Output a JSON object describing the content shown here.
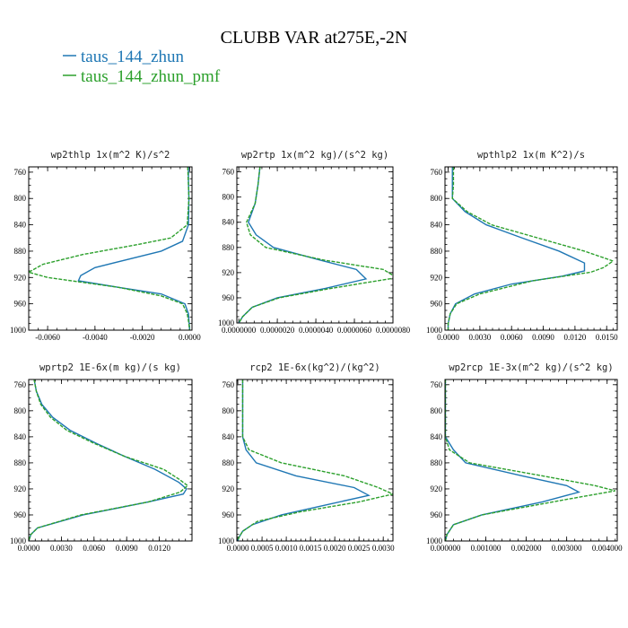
{
  "title": "CLUBB VAR at275E,-2N",
  "legend": [
    {
      "label": "taus_144_zhun",
      "color": "#1f77b4",
      "dash": "solid"
    },
    {
      "label": "taus_144_zhun_pmf",
      "color": "#2ca02c",
      "dash": "dashed"
    }
  ],
  "chart_data": [
    {
      "type": "line",
      "title": "wp2thlp   1x(m^2 K)/s^2",
      "y_ticks": [
        "760",
        "800",
        "840",
        "880",
        "920",
        "960",
        "1000"
      ],
      "ylim": [
        1000,
        752
      ],
      "xlim": [
        -0.0068,
        0.0001
      ],
      "x_ticks": [
        -0.006,
        -0.004,
        -0.002,
        0.0
      ],
      "x_tick_labels": [
        "-0.0060",
        "-0.0040",
        "-0.0020",
        "0.0000"
      ],
      "series": [
        {
          "y": [
            752,
            770,
            800,
            840,
            865,
            880,
            905,
            917,
            925,
            935,
            945,
            960,
            975,
            990,
            1000
          ],
          "x": [
            -5e-05,
            -5e-05,
            -3e-05,
            -5e-05,
            -0.0003,
            -0.0012,
            -0.004,
            -0.0046,
            -0.0047,
            -0.003,
            -0.0012,
            -0.0002,
            -5e-05,
            -2e-05,
            0.0
          ]
        },
        {
          "y": [
            752,
            770,
            800,
            840,
            860,
            870,
            885,
            900,
            912,
            920,
            925,
            935,
            948,
            960,
            975,
            990,
            1000
          ],
          "x": [
            -8e-05,
            -6e-05,
            -3e-05,
            -0.0001,
            -0.0008,
            -0.0022,
            -0.0045,
            -0.0062,
            -0.0068,
            -0.006,
            -0.005,
            -0.003,
            -0.0012,
            -0.0003,
            -0.0001,
            -3e-05,
            0.0
          ]
        }
      ]
    },
    {
      "type": "line",
      "title": "wp2rtp   1x(m^2 kg)/(s^2 kg)",
      "y_ticks": [
        "760",
        "800",
        "840",
        "880",
        "920",
        "960",
        "1000"
      ],
      "ylim": [
        1000,
        752
      ],
      "xlim": [
        -1e-07,
        8e-06
      ],
      "x_ticks": [
        0.0,
        2e-06,
        4e-06,
        6e-06,
        8e-06
      ],
      "x_tick_labels": [
        "0.0000000",
        "0.0000020",
        "0.0000040",
        "0.0000060",
        "0.0000080"
      ],
      "series": [
        {
          "y": [
            752,
            780,
            810,
            840,
            860,
            880,
            900,
            915,
            930,
            945,
            960,
            975,
            990,
            1000
          ],
          "x": [
            1.1e-06,
            1e-06,
            8.5e-07,
            5e-07,
            9e-07,
            1.8e-06,
            4.2e-06,
            6.1e-06,
            6.6e-06,
            4.5e-06,
            2e-06,
            7e-07,
            2e-07,
            0.0
          ],
          "style": "solid"
        },
        {
          "y": [
            752,
            780,
            810,
            840,
            860,
            880,
            900,
            915,
            928,
            945,
            960,
            975,
            990,
            1000
          ],
          "x": [
            1.1e-06,
            1e-06,
            8.5e-07,
            4e-07,
            6e-07,
            1.4e-06,
            4.4e-06,
            7.5e-06,
            8.2e-06,
            4.8e-06,
            2.1e-06,
            7e-07,
            2e-07,
            0.0
          ]
        }
      ]
    },
    {
      "type": "line",
      "title": "wpthlp2   1x(m K^2)/s",
      "y_ticks": [
        "760",
        "800",
        "840",
        "880",
        "920",
        "960",
        "1000"
      ],
      "ylim": [
        1000,
        752
      ],
      "xlim": [
        -0.0003,
        0.016
      ],
      "x_ticks": [
        0.0,
        0.003,
        0.006,
        0.009,
        0.012,
        0.015
      ],
      "x_tick_labels": [
        "0.0000",
        "0.0030",
        "0.0060",
        "0.0090",
        "0.0120",
        "0.0150"
      ],
      "series": [
        {
          "y": [
            752,
            780,
            800,
            820,
            840,
            860,
            880,
            898,
            910,
            918,
            930,
            945,
            960,
            975,
            990,
            1000
          ],
          "x": [
            0.0004,
            0.0004,
            0.0004,
            0.0016,
            0.0036,
            0.007,
            0.0105,
            0.0129,
            0.0129,
            0.0108,
            0.006,
            0.0025,
            0.0007,
            0.0002,
            0.0,
            0.0
          ]
        },
        {
          "y": [
            752,
            780,
            800,
            820,
            840,
            860,
            880,
            895,
            905,
            912,
            925,
            945,
            960,
            975,
            990,
            1000
          ],
          "x": [
            0.0005,
            0.0005,
            0.0004,
            0.0018,
            0.0041,
            0.0085,
            0.0129,
            0.0156,
            0.0147,
            0.0135,
            0.008,
            0.003,
            0.0008,
            0.0002,
            0.0,
            0.0
          ]
        }
      ]
    },
    {
      "type": "line",
      "title": "wprtp2   1E-6x(m kg)/(s kg)",
      "y_ticks": [
        "760",
        "800",
        "840",
        "880",
        "920",
        "960",
        "1000"
      ],
      "ylim": [
        1000,
        752
      ],
      "xlim": [
        0.0,
        0.015
      ],
      "x_ticks": [
        0.0,
        0.003,
        0.006,
        0.009,
        0.012
      ],
      "x_tick_labels": [
        "0.0000",
        "0.0030",
        "0.0060",
        "0.0090",
        "0.0120"
      ],
      "series": [
        {
          "y": [
            752,
            770,
            790,
            810,
            830,
            850,
            870,
            890,
            910,
            920,
            928,
            940,
            960,
            980,
            990,
            1000
          ],
          "x": [
            0.0005,
            0.0007,
            0.0012,
            0.0022,
            0.0038,
            0.0062,
            0.0088,
            0.0116,
            0.0138,
            0.0145,
            0.0142,
            0.011,
            0.005,
            0.0008,
            0.0002,
            0.0
          ]
        },
        {
          "y": [
            752,
            770,
            790,
            810,
            830,
            850,
            870,
            890,
            905,
            915,
            925,
            940,
            960,
            980,
            990,
            1000
          ],
          "x": [
            0.0005,
            0.0007,
            0.0011,
            0.002,
            0.0035,
            0.006,
            0.0088,
            0.0124,
            0.0138,
            0.0146,
            0.0139,
            0.011,
            0.0048,
            0.0008,
            0.0002,
            0.0
          ]
        }
      ]
    },
    {
      "type": "line",
      "title": "rcp2   1E-6x(kg^2)/(kg^2)",
      "y_ticks": [
        "760",
        "800",
        "840",
        "880",
        "920",
        "960",
        "1000"
      ],
      "ylim": [
        1000,
        752
      ],
      "xlim": [
        -2e-05,
        0.0032
      ],
      "x_ticks": [
        0.0,
        0.0005,
        0.001,
        0.0015,
        0.002,
        0.0025,
        0.003
      ],
      "x_tick_labels": [
        "0.0000",
        "0.0005",
        "0.0010",
        "0.0015",
        "0.0020",
        "0.0025",
        "0.0030"
      ],
      "series": [
        {
          "y": [
            752,
            800,
            840,
            860,
            880,
            900,
            918,
            930,
            945,
            960,
            975,
            985,
            995,
            1000
          ],
          "x": [
            0.0001,
            0.0001,
            0.0001,
            0.00017,
            0.00038,
            0.0012,
            0.0024,
            0.0027,
            0.0018,
            0.0009,
            0.0003,
            0.0001,
            2e-05,
            0.0
          ]
        },
        {
          "y": [
            752,
            800,
            840,
            860,
            880,
            900,
            918,
            928,
            940,
            955,
            970,
            985,
            995,
            1000
          ],
          "x": [
            0.0001,
            0.0001,
            0.0001,
            0.00023,
            0.0009,
            0.0022,
            0.0029,
            0.0032,
            0.0025,
            0.0013,
            0.0004,
            0.0001,
            2e-05,
            0.0
          ]
        }
      ]
    },
    {
      "type": "line",
      "title": "wp2rcp   1E-3x(m^2 kg)/(s^2 kg)",
      "y_ticks": [
        "760",
        "800",
        "840",
        "880",
        "920",
        "960",
        "1000"
      ],
      "ylim": [
        1000,
        752
      ],
      "xlim": [
        -1e-05,
        0.00425
      ],
      "x_ticks": [
        0.0,
        0.001,
        0.002,
        0.003,
        0.004
      ],
      "x_tick_labels": [
        "0.000000",
        "0.001000",
        "0.002000",
        "0.003000",
        "0.004000"
      ],
      "series": [
        {
          "y": [
            752,
            800,
            840,
            860,
            880,
            900,
            915,
            925,
            940,
            960,
            975,
            990,
            1000
          ],
          "x": [
            0.0,
            0.0,
            0.0,
            0.0002,
            0.0005,
            0.0019,
            0.003,
            0.0033,
            0.0024,
            0.0009,
            0.0002,
            4e-05,
            0.0
          ]
        },
        {
          "y": [
            752,
            800,
            840,
            860,
            880,
            900,
            915,
            923,
            935,
            960,
            975,
            990,
            1000
          ],
          "x": [
            0.0,
            0.0,
            0.0,
            0.0001,
            0.0006,
            0.0024,
            0.0037,
            0.0042,
            0.0031,
            0.0009,
            0.0002,
            4e-05,
            0.0
          ]
        }
      ]
    }
  ]
}
